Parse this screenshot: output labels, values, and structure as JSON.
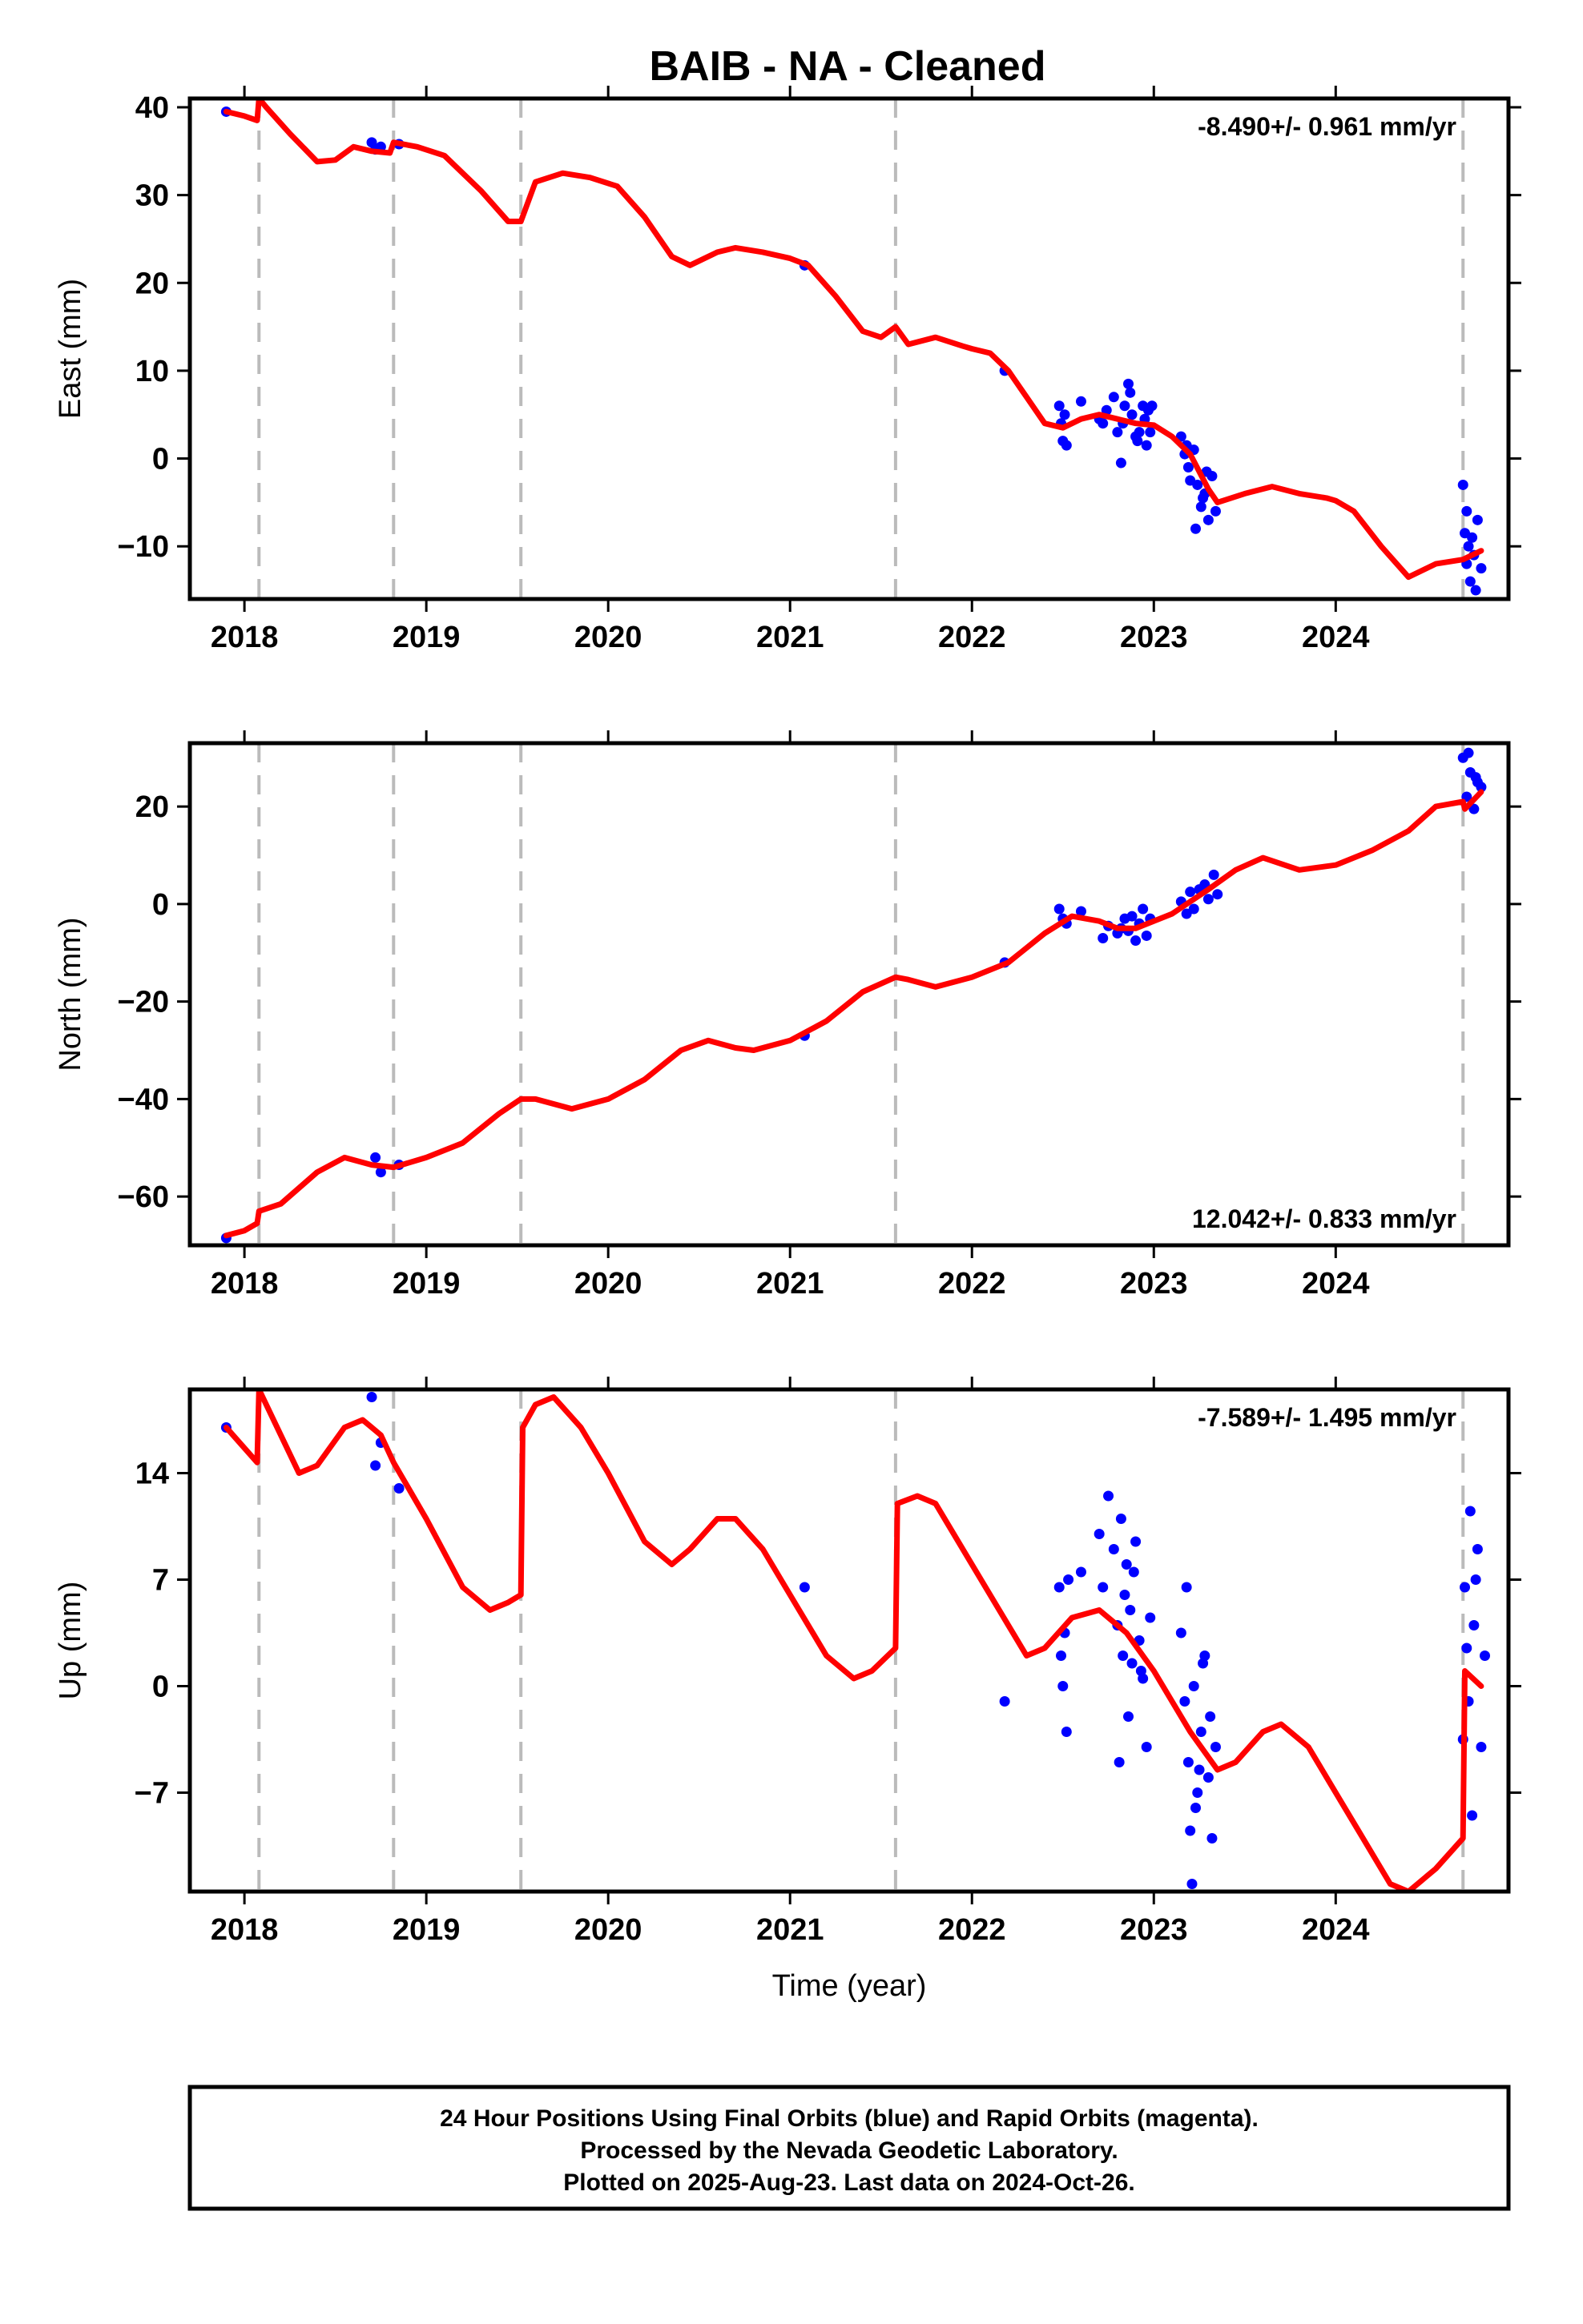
{
  "chart_data": {
    "title": "BAIB  - NA - Cleaned",
    "type": "scatter",
    "xlabel": "Time (year)",
    "x_ticks": [
      2018,
      2019,
      2020,
      2021,
      2022,
      2023,
      2024
    ],
    "xlim": [
      2017.7,
      2024.95
    ],
    "event_lines": [
      2018.08,
      2018.82,
      2019.52,
      2021.58,
      2024.7
    ],
    "colors": {
      "observations": "#0000ff",
      "model": "#ff0000",
      "event_lines": "#bbbbbb"
    },
    "panels": [
      {
        "name": "east",
        "ylabel": "East (mm)",
        "ylim": [
          -16,
          41
        ],
        "y_ticks": [
          40,
          30,
          20,
          10,
          0,
          -10
        ],
        "y_tick_labels": [
          "40",
          "30",
          "20",
          "10",
          "0",
          "−10"
        ],
        "rate": "-8.490+/- 0.961 mm/yr",
        "rate_position": "top-right",
        "model": {
          "x": [
            2017.9,
            2018.0,
            2018.07,
            2018.08,
            2018.12,
            2018.25,
            2018.4,
            2018.5,
            2018.6,
            2018.7,
            2018.8,
            2018.82,
            2018.95,
            2019.1,
            2019.3,
            2019.45,
            2019.52,
            2019.6,
            2019.75,
            2019.9,
            2020.05,
            2020.2,
            2020.35,
            2020.45,
            2020.6,
            2020.7,
            2020.85,
            2021.0,
            2021.1,
            2021.25,
            2021.4,
            2021.5,
            2021.58,
            2021.65,
            2021.8,
            2021.95,
            2022.0,
            2022.1,
            2022.2,
            2022.3,
            2022.4,
            2022.5,
            2022.6,
            2022.7,
            2022.8,
            2022.9,
            2023.0,
            2023.1,
            2023.2,
            2023.3,
            2023.35,
            2023.5,
            2023.65,
            2023.8,
            2023.95,
            2024.0,
            2024.1,
            2024.25,
            2024.4,
            2024.55,
            2024.7,
            2024.8
          ],
          "y": [
            39.5,
            39.0,
            38.5,
            41.0,
            40.0,
            37.0,
            33.8,
            34.0,
            35.5,
            35.0,
            34.8,
            36.0,
            35.5,
            34.5,
            30.5,
            27.0,
            27.0,
            31.5,
            32.5,
            32.0,
            31.0,
            27.5,
            23.0,
            22.0,
            23.5,
            24.0,
            23.5,
            22.8,
            22.0,
            18.5,
            14.5,
            13.8,
            15.0,
            13.0,
            13.8,
            12.8,
            12.5,
            12.0,
            10.0,
            7.0,
            4.0,
            3.5,
            4.5,
            5.0,
            4.5,
            4.0,
            3.8,
            2.5,
            0.5,
            -3.5,
            -5.0,
            -4.0,
            -3.2,
            -4.0,
            -4.5,
            -4.8,
            -6.0,
            -10.0,
            -13.5,
            -12.0,
            -11.5,
            -10.5
          ]
        },
        "observations": {
          "x": [
            2017.9,
            2018.7,
            2018.72,
            2018.75,
            2018.85,
            2021.08,
            2022.18,
            2022.48,
            2022.49,
            2022.5,
            2022.51,
            2022.52,
            2022.6,
            2022.7,
            2022.72,
            2022.74,
            2022.78,
            2022.8,
            2022.82,
            2022.84,
            2022.86,
            2022.88,
            2022.9,
            2022.92,
            2022.94,
            2022.95,
            2022.96,
            2022.97,
            2022.98,
            2022.99,
            2022.83,
            2022.87,
            2022.91,
            2023.15,
            2023.17,
            2023.19,
            2023.2,
            2023.22,
            2023.24,
            2023.26,
            2023.28,
            2023.3,
            2023.32,
            2023.34,
            2023.18,
            2023.23,
            2023.27,
            2023.29,
            2024.7,
            2024.71,
            2024.72,
            2024.73,
            2024.74,
            2024.76,
            2024.78,
            2024.8,
            2024.72,
            2024.75,
            2024.77
          ],
          "y": [
            39.5,
            36.0,
            35.2,
            35.5,
            35.8,
            22.0,
            10.0,
            6.0,
            4.0,
            2.0,
            5.0,
            1.5,
            6.5,
            4.5,
            4.0,
            5.5,
            7.0,
            3.0,
            -0.5,
            6.0,
            8.5,
            5.0,
            2.5,
            3.0,
            6.0,
            4.5,
            1.5,
            5.5,
            3.0,
            6.0,
            4.0,
            7.5,
            2.0,
            2.5,
            0.5,
            -1.0,
            -2.5,
            1.0,
            -3.0,
            -5.5,
            -4.0,
            -7.0,
            -2.0,
            -6.0,
            1.5,
            -8.0,
            -4.5,
            -1.5,
            -3.0,
            -8.5,
            -12.0,
            -10.0,
            -14.0,
            -11.0,
            -7.0,
            -12.5,
            -6.0,
            -9.0,
            -15.0
          ]
        }
      },
      {
        "name": "north",
        "ylabel": "North (mm)",
        "ylim": [
          -70,
          33
        ],
        "y_ticks": [
          20,
          0,
          -20,
          -40,
          -60
        ],
        "y_tick_labels": [
          "20",
          "0",
          "−20",
          "−40",
          "−60"
        ],
        "rate": "12.042+/- 0.833 mm/yr",
        "rate_position": "bottom-right",
        "model": {
          "x": [
            2017.9,
            2018.0,
            2018.07,
            2018.08,
            2018.2,
            2018.4,
            2018.55,
            2018.7,
            2018.82,
            2019.0,
            2019.2,
            2019.4,
            2019.52,
            2019.6,
            2019.8,
            2020.0,
            2020.2,
            2020.4,
            2020.55,
            2020.7,
            2020.8,
            2021.0,
            2021.2,
            2021.4,
            2021.58,
            2021.65,
            2021.8,
            2022.0,
            2022.2,
            2022.4,
            2022.55,
            2022.7,
            2022.8,
            2022.9,
            2023.1,
            2023.3,
            2023.45,
            2023.6,
            2023.8,
            2024.0,
            2024.2,
            2024.4,
            2024.55,
            2024.7,
            2024.71,
            2024.8
          ],
          "y": [
            -68.0,
            -67.0,
            -65.5,
            -63.0,
            -61.5,
            -55.0,
            -52.0,
            -53.5,
            -54.0,
            -52.0,
            -49.0,
            -43.0,
            -40.0,
            -40.0,
            -42.0,
            -40.0,
            -36.0,
            -30.0,
            -28.0,
            -29.5,
            -30.0,
            -28.0,
            -24.0,
            -18.0,
            -15.0,
            -15.5,
            -17.0,
            -15.0,
            -12.0,
            -6.0,
            -2.5,
            -3.5,
            -5.0,
            -5.0,
            -2.0,
            3.0,
            7.0,
            9.5,
            7.0,
            8.0,
            11.0,
            15.0,
            20.0,
            21.0,
            19.5,
            23.0
          ]
        },
        "observations": {
          "x": [
            2017.9,
            2018.72,
            2018.75,
            2018.85,
            2021.08,
            2022.18,
            2022.48,
            2022.5,
            2022.52,
            2022.6,
            2022.72,
            2022.75,
            2022.8,
            2022.84,
            2022.86,
            2022.88,
            2022.9,
            2022.92,
            2022.94,
            2022.96,
            2022.98,
            2022.82,
            2023.15,
            2023.18,
            2023.2,
            2023.22,
            2023.25,
            2023.28,
            2023.3,
            2023.33,
            2023.35,
            2024.7,
            2024.72,
            2024.74,
            2024.76,
            2024.78,
            2024.8,
            2024.73,
            2024.77
          ],
          "y": [
            -68.5,
            -52.0,
            -55.0,
            -53.5,
            -27.0,
            -12.0,
            -1.0,
            -3.0,
            -4.0,
            -1.5,
            -7.0,
            -4.5,
            -6.0,
            -3.0,
            -5.5,
            -2.5,
            -7.5,
            -4.0,
            -1.0,
            -6.5,
            -3.0,
            -5.0,
            0.5,
            -2.0,
            2.5,
            -1.0,
            3.0,
            4.0,
            1.0,
            6.0,
            2.0,
            30.0,
            22.0,
            27.0,
            19.5,
            25.0,
            24.0,
            31.0,
            26.0
          ]
        }
      },
      {
        "name": "up",
        "ylabel": "Up (mm)",
        "ylim": [
          -13.5,
          19.5
        ],
        "y_ticks": [
          14,
          7,
          0,
          -7
        ],
        "y_tick_labels": [
          "14",
          "7",
          "0",
          "−7"
        ],
        "rate": "-7.589+/- 1.495 mm/yr",
        "rate_position": "top-right",
        "model": {
          "x": [
            2017.9,
            2018.07,
            2018.08,
            2018.2,
            2018.3,
            2018.4,
            2018.55,
            2018.65,
            2018.75,
            2018.82,
            2019.0,
            2019.2,
            2019.35,
            2019.45,
            2019.52,
            2019.53,
            2019.6,
            2019.7,
            2019.85,
            2020.0,
            2020.2,
            2020.35,
            2020.45,
            2020.6,
            2020.7,
            2020.85,
            2021.0,
            2021.2,
            2021.35,
            2021.45,
            2021.58,
            2021.59,
            2021.7,
            2021.8,
            2022.0,
            2022.15,
            2022.3,
            2022.4,
            2022.55,
            2022.7,
            2022.85,
            2023.0,
            2023.2,
            2023.35,
            2023.45,
            2023.6,
            2023.7,
            2023.85,
            2024.0,
            2024.15,
            2024.3,
            2024.4,
            2024.55,
            2024.7,
            2024.71,
            2024.8
          ],
          "y": [
            17.0,
            14.7,
            19.5,
            16.5,
            14.0,
            14.5,
            17.0,
            17.5,
            16.5,
            14.7,
            11.0,
            6.5,
            5.0,
            5.5,
            6.0,
            17.0,
            18.5,
            19.0,
            17.0,
            14.0,
            9.5,
            8.0,
            9.0,
            11.0,
            11.0,
            9.0,
            6.0,
            2.0,
            0.5,
            1.0,
            2.5,
            12.0,
            12.5,
            12.0,
            8.0,
            5.0,
            2.0,
            2.5,
            4.5,
            5.0,
            3.5,
            1.0,
            -3.0,
            -5.5,
            -5.0,
            -3.0,
            -2.5,
            -4.0,
            -7.0,
            -10.0,
            -13.0,
            -13.5,
            -12.0,
            -10.0,
            1.0,
            0.0
          ]
        },
        "observations": {
          "x": [
            2017.9,
            2018.7,
            2018.72,
            2018.75,
            2018.85,
            2021.08,
            2022.18,
            2022.48,
            2022.49,
            2022.5,
            2022.51,
            2022.52,
            2022.53,
            2022.6,
            2022.7,
            2022.72,
            2022.75,
            2022.78,
            2022.8,
            2022.82,
            2022.83,
            2022.84,
            2022.85,
            2022.86,
            2022.87,
            2022.88,
            2022.9,
            2022.92,
            2022.94,
            2022.96,
            2022.98,
            2022.81,
            2022.89,
            2022.93,
            2023.15,
            2023.17,
            2023.19,
            2023.2,
            2023.22,
            2023.24,
            2023.26,
            2023.28,
            2023.3,
            2023.32,
            2023.34,
            2023.18,
            2023.23,
            2023.27,
            2023.31,
            2023.21,
            2023.25,
            2024.7,
            2024.71,
            2024.72,
            2024.73,
            2024.74,
            2024.76,
            2024.78,
            2024.8,
            2024.82,
            2024.75,
            2024.77
          ],
          "y": [
            17.0,
            19.0,
            14.5,
            16.0,
            13.0,
            6.5,
            -1.0,
            6.5,
            2.0,
            0.0,
            3.5,
            -3.0,
            7.0,
            7.5,
            10.0,
            6.5,
            12.5,
            9.0,
            4.0,
            11.0,
            2.0,
            6.0,
            8.0,
            -2.0,
            5.0,
            1.5,
            9.5,
            3.0,
            0.5,
            -4.0,
            4.5,
            -5.0,
            7.5,
            1.0,
            3.5,
            -1.0,
            -5.0,
            -9.5,
            0.0,
            -7.0,
            -3.0,
            2.0,
            -6.0,
            -10.0,
            -4.0,
            6.5,
            -8.0,
            1.5,
            -2.0,
            -13.0,
            -5.5,
            -3.5,
            6.5,
            2.5,
            -1.0,
            11.5,
            4.0,
            9.0,
            -4.0,
            2.0,
            -8.5,
            7.0
          ]
        }
      }
    ]
  },
  "footer": {
    "line1": "24 Hour Positions Using Final Orbits (blue) and Rapid Orbits (magenta).",
    "line2": "Processed by the Nevada Geodetic Laboratory.",
    "line3": "Plotted on 2025-Aug-23. Last data on 2024-Oct-26."
  }
}
